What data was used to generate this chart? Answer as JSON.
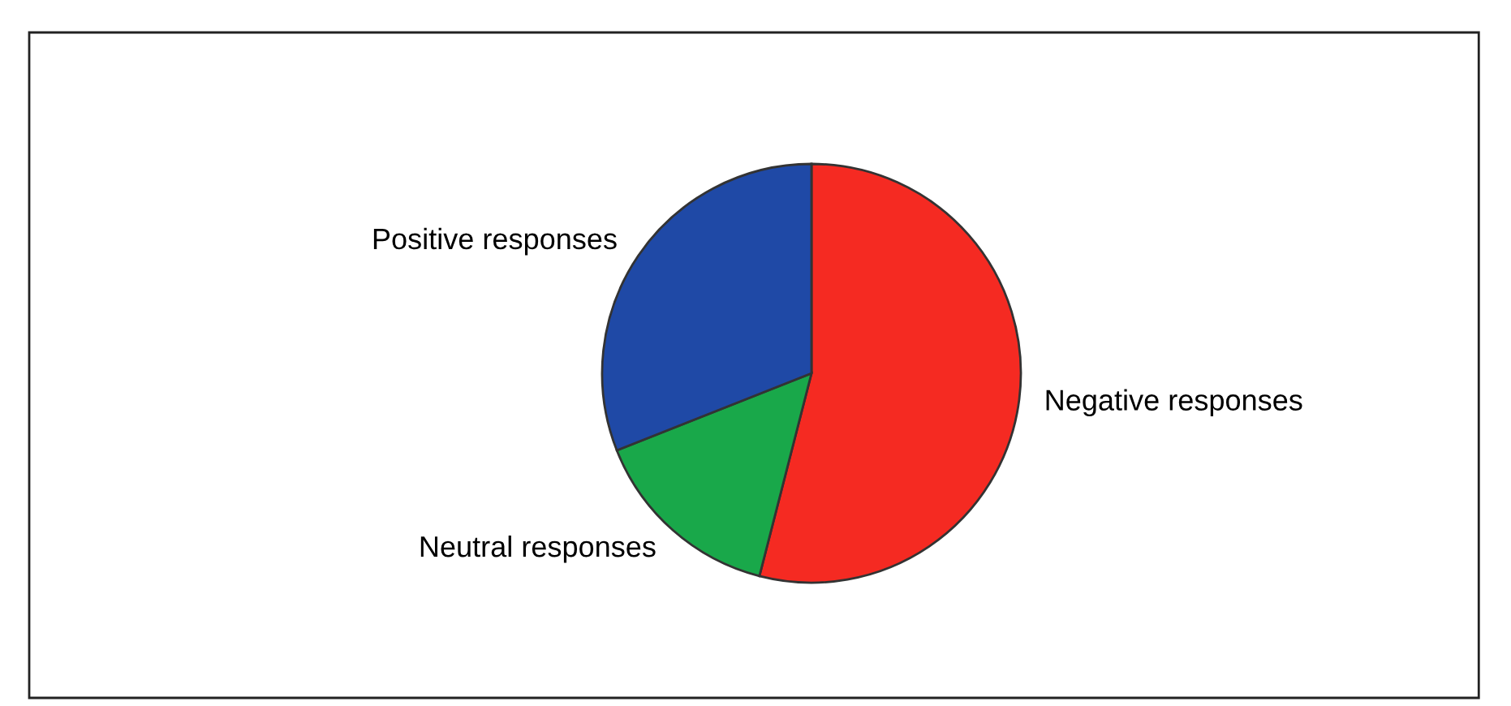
{
  "chart_data": {
    "type": "pie",
    "categories": [
      "Negative responses",
      "Neutral responses",
      "Positive responses"
    ],
    "values": [
      54,
      15,
      31
    ],
    "colors": [
      "#f52a22",
      "#19a84a",
      "#1f49a6"
    ]
  }
}
